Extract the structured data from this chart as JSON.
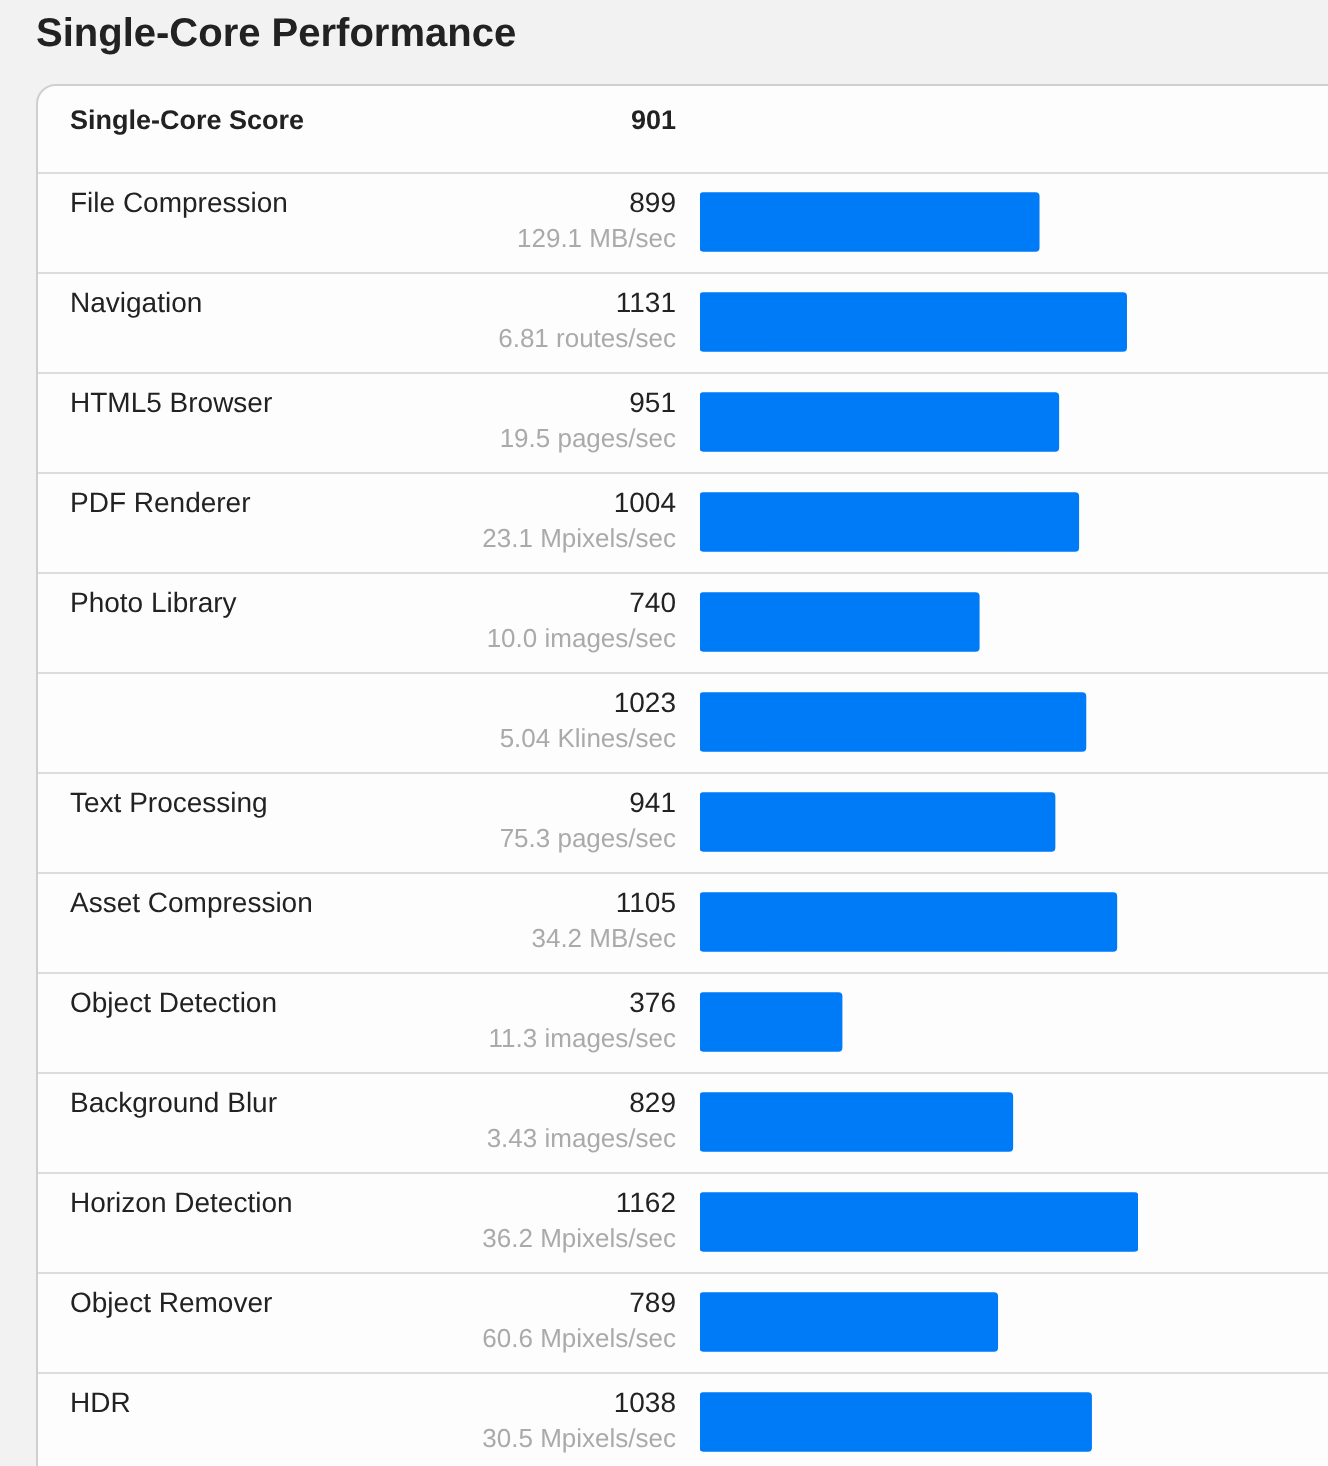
{
  "chart_data": {
    "type": "bar",
    "orientation": "horizontal",
    "title": "Single-Core Performance",
    "categories": [
      "Single-Core Score",
      "File Compression",
      "Navigation",
      "HTML5 Browser",
      "PDF Renderer",
      "Photo Library",
      null,
      "Text Processing",
      "Asset Compression",
      "Object Detection",
      "Background Blur",
      "Horizon Detection",
      "Object Remover",
      "HDR"
    ],
    "values": [
      null,
      899,
      1131,
      951,
      1004,
      740,
      1023,
      941,
      1105,
      376,
      829,
      1162,
      789,
      1038
    ],
    "value_labels": [
      "901",
      "899",
      "1131",
      "951",
      "1004",
      "740",
      "1023",
      "941",
      "1105",
      "376",
      "829",
      "1162",
      "789",
      "1038"
    ],
    "annotations": [
      "129.1 MB/sec",
      "6.81 routes/sec",
      "19.5 pages/sec",
      "23.1 Mpixels/sec",
      "10.0 images/sec",
      "5.04 Klines/sec",
      "75.3 pages/sec",
      "34.2 MB/sec",
      "11.3 images/sec",
      "3.43 images/sec",
      "36.2 Mpixels/sec",
      "60.6 Mpixels/sec",
      "30.5 Mpixels/sec"
    ],
    "color": "#007bf7",
    "grid": "y",
    "tick_labels": "y"
  }
}
